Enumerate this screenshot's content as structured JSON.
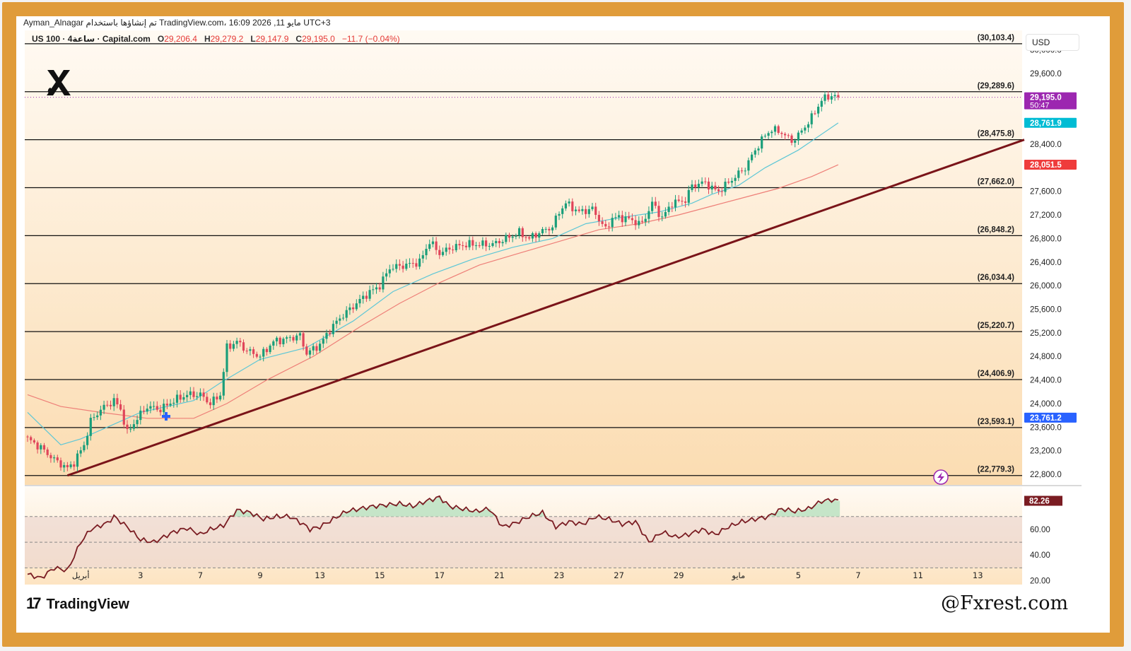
{
  "header": {
    "line1": "Ayman_Alnagar تم إنشاؤها باستخدام TradingView.com، 16:09 2026 ,11 مايو UTC+3",
    "symbol": "US 100 · 4ساعة · Capital.com",
    "o_label": "O",
    "o_value": "29,206.4",
    "h_label": "H",
    "h_value": "29,279.2",
    "l_label": "L",
    "l_value": "29,147.9",
    "c_label": "C",
    "c_value": "29,195.0",
    "change": "−11.7 (−0.04%)"
  },
  "currency": "USD",
  "branding": {
    "tv_logo": "TradingView",
    "watermark": "@Fxrest.com",
    "logo_icon": "x-brand-icon"
  },
  "colors": {
    "up": "#1a9e7a",
    "down": "#e0455a",
    "ema_fast": "#5ec7d6",
    "ema_slow": "#ee7f78",
    "trendline": "#7a1419",
    "rsi": "#7a1c22",
    "price_badge": "#9c27b0",
    "ema_fast_badge": "#00bcd4",
    "ema_slow_badge": "#ef3c3c",
    "blue_badge": "#2962ff"
  },
  "chart_data": {
    "type": "candlestick",
    "price_axis": {
      "ticks": [
        "30,000.0",
        "29,600.0",
        "28,400.0",
        "27,600.0",
        "27,200.0",
        "26,800.0",
        "26,400.0",
        "26,000.0",
        "25,600.0",
        "25,200.0",
        "24,800.0",
        "24,400.0",
        "24,000.0",
        "23,600.0",
        "23,200.0",
        "22,800.0"
      ],
      "tick_values": [
        30000,
        29600,
        28400,
        27600,
        27200,
        26800,
        26400,
        26000,
        25600,
        25200,
        24800,
        24400,
        24000,
        23600,
        23200,
        22800
      ],
      "range": [
        22620,
        30330
      ]
    },
    "time_axis": {
      "labels": [
        "أبريل",
        "3",
        "7",
        "9",
        "13",
        "15",
        "17",
        "21",
        "23",
        "27",
        "29",
        "مايو",
        "5",
        "7",
        "11",
        "13"
      ],
      "label_bar_index": [
        16,
        34,
        52,
        70,
        88,
        106,
        124,
        142,
        160,
        178,
        196,
        214,
        232,
        250,
        268,
        286
      ]
    },
    "fib_levels": [
      {
        "label": "(30,103.4)",
        "value": 30103.4
      },
      {
        "label": "(29,289.6)",
        "value": 29289.6
      },
      {
        "label": "(28,475.8)",
        "value": 28475.8
      },
      {
        "label": "(27,662.0)",
        "value": 27662.0
      },
      {
        "label": "(26,848.2)",
        "value": 26848.2
      },
      {
        "label": "(26,034.4)",
        "value": 26034.4
      },
      {
        "label": "(25,220.7)",
        "value": 25220.7
      },
      {
        "label": "(24,406.9)",
        "value": 24406.9
      },
      {
        "label": "(23,593.1)",
        "value": 23593.1
      },
      {
        "label": "(22,779.3)",
        "value": 22779.3
      }
    ],
    "price_badges": [
      {
        "line1": "29,195.0",
        "line2": "50:47",
        "value": 29195.0,
        "color": "#9c27b0"
      },
      {
        "line1": "28,761.9",
        "value": 28761.9,
        "color": "#00bcd4"
      },
      {
        "line1": "28,051.5",
        "value": 28051.5,
        "color": "#ef3c3c"
      },
      {
        "line1": "23,761.2",
        "value": 23761.2,
        "color": "#2962ff"
      }
    ],
    "trendline": {
      "from": {
        "bar": 12,
        "value": 22780
      },
      "to": {
        "bar": 300,
        "value": 28475
      }
    },
    "close_keypoints": [
      [
        0,
        23400
      ],
      [
        4,
        23250
      ],
      [
        8,
        23050
      ],
      [
        12,
        22900
      ],
      [
        14,
        23000
      ],
      [
        17,
        23300
      ],
      [
        19,
        23700
      ],
      [
        22,
        23900
      ],
      [
        26,
        24050
      ],
      [
        28,
        23900
      ],
      [
        30,
        23500
      ],
      [
        33,
        23750
      ],
      [
        36,
        23950
      ],
      [
        40,
        23900
      ],
      [
        44,
        24050
      ],
      [
        48,
        24150
      ],
      [
        52,
        24150
      ],
      [
        55,
        24000
      ],
      [
        58,
        24150
      ],
      [
        60,
        24950
      ],
      [
        63,
        25050
      ],
      [
        66,
        24900
      ],
      [
        70,
        24800
      ],
      [
        74,
        25050
      ],
      [
        78,
        25100
      ],
      [
        82,
        25150
      ],
      [
        84,
        24850
      ],
      [
        88,
        25000
      ],
      [
        91,
        25250
      ],
      [
        94,
        25450
      ],
      [
        98,
        25650
      ],
      [
        102,
        25850
      ],
      [
        106,
        26000
      ],
      [
        109,
        26300
      ],
      [
        114,
        26350
      ],
      [
        118,
        26400
      ],
      [
        121,
        26750
      ],
      [
        124,
        26550
      ],
      [
        128,
        26650
      ],
      [
        132,
        26700
      ],
      [
        136,
        26700
      ],
      [
        140,
        26700
      ],
      [
        144,
        26800
      ],
      [
        148,
        26900
      ],
      [
        151,
        26800
      ],
      [
        154,
        26900
      ],
      [
        158,
        27000
      ],
      [
        160,
        27250
      ],
      [
        162,
        27400
      ],
      [
        166,
        27250
      ],
      [
        170,
        27300
      ],
      [
        174,
        26950
      ],
      [
        176,
        27150
      ],
      [
        180,
        27150
      ],
      [
        182,
        27100
      ],
      [
        185,
        27050
      ],
      [
        188,
        27400
      ],
      [
        191,
        27150
      ],
      [
        194,
        27400
      ],
      [
        198,
        27450
      ],
      [
        200,
        27700
      ],
      [
        204,
        27750
      ],
      [
        206,
        27650
      ],
      [
        208,
        27600
      ],
      [
        212,
        27800
      ],
      [
        216,
        28000
      ],
      [
        219,
        28300
      ],
      [
        222,
        28550
      ],
      [
        224,
        28650
      ],
      [
        227,
        28600
      ],
      [
        230,
        28450
      ],
      [
        232,
        28550
      ],
      [
        236,
        28850
      ],
      [
        239,
        29150
      ],
      [
        242,
        29230
      ],
      [
        244,
        29195
      ]
    ],
    "ema_fast_keypoints": [
      [
        0,
        23850
      ],
      [
        10,
        23300
      ],
      [
        16,
        23400
      ],
      [
        24,
        23600
      ],
      [
        34,
        23850
      ],
      [
        50,
        24050
      ],
      [
        58,
        24350
      ],
      [
        70,
        24750
      ],
      [
        84,
        24950
      ],
      [
        98,
        25400
      ],
      [
        110,
        25900
      ],
      [
        122,
        26200
      ],
      [
        134,
        26450
      ],
      [
        146,
        26650
      ],
      [
        158,
        26800
      ],
      [
        168,
        27050
      ],
      [
        178,
        27150
      ],
      [
        190,
        27250
      ],
      [
        200,
        27400
      ],
      [
        206,
        27550
      ],
      [
        214,
        27700
      ],
      [
        222,
        28000
      ],
      [
        232,
        28300
      ],
      [
        244,
        28760
      ]
    ],
    "ema_slow_keypoints": [
      [
        0,
        24150
      ],
      [
        10,
        23950
      ],
      [
        22,
        23850
      ],
      [
        36,
        23750
      ],
      [
        50,
        23750
      ],
      [
        60,
        24000
      ],
      [
        72,
        24400
      ],
      [
        86,
        24800
      ],
      [
        100,
        25300
      ],
      [
        112,
        25700
      ],
      [
        124,
        26050
      ],
      [
        136,
        26350
      ],
      [
        148,
        26550
      ],
      [
        160,
        26750
      ],
      [
        172,
        26950
      ],
      [
        184,
        27050
      ],
      [
        196,
        27200
      ],
      [
        206,
        27350
      ],
      [
        216,
        27500
      ],
      [
        226,
        27650
      ],
      [
        236,
        27850
      ],
      [
        244,
        28050
      ]
    ],
    "rsi": {
      "value_label": "82.26",
      "levels": [
        70,
        50,
        30
      ],
      "axis_ticks": [
        "60.00",
        "40.00",
        "20.00"
      ],
      "axis_tick_values": [
        60,
        40,
        20
      ],
      "range": [
        17,
        93
      ],
      "keypoints": [
        [
          0,
          25
        ],
        [
          4,
          22
        ],
        [
          8,
          30
        ],
        [
          12,
          28
        ],
        [
          16,
          50
        ],
        [
          19,
          60
        ],
        [
          24,
          65
        ],
        [
          26,
          70
        ],
        [
          30,
          62
        ],
        [
          34,
          52
        ],
        [
          38,
          50
        ],
        [
          44,
          58
        ],
        [
          48,
          61
        ],
        [
          52,
          56
        ],
        [
          55,
          60
        ],
        [
          59,
          63
        ],
        [
          63,
          75
        ],
        [
          67,
          73
        ],
        [
          71,
          68
        ],
        [
          75,
          70
        ],
        [
          79,
          70
        ],
        [
          83,
          64
        ],
        [
          85,
          60
        ],
        [
          88,
          62
        ],
        [
          92,
          68
        ],
        [
          96,
          74
        ],
        [
          100,
          76
        ],
        [
          104,
          78
        ],
        [
          108,
          79
        ],
        [
          112,
          80
        ],
        [
          116,
          78
        ],
        [
          120,
          82
        ],
        [
          124,
          85
        ],
        [
          127,
          78
        ],
        [
          131,
          76
        ],
        [
          135,
          74
        ],
        [
          139,
          76
        ],
        [
          143,
          62
        ],
        [
          147,
          65
        ],
        [
          151,
          70
        ],
        [
          155,
          73
        ],
        [
          159,
          62
        ],
        [
          163,
          66
        ],
        [
          167,
          64
        ],
        [
          171,
          70
        ],
        [
          175,
          68
        ],
        [
          179,
          64
        ],
        [
          183,
          66
        ],
        [
          187,
          50
        ],
        [
          191,
          58
        ],
        [
          195,
          54
        ],
        [
          199,
          56
        ],
        [
          203,
          60
        ],
        [
          207,
          56
        ],
        [
          211,
          62
        ],
        [
          215,
          66
        ],
        [
          219,
          68
        ],
        [
          223,
          70
        ],
        [
          227,
          76
        ],
        [
          231,
          74
        ],
        [
          235,
          76
        ],
        [
          239,
          82
        ],
        [
          242,
          83
        ],
        [
          244,
          82.26
        ]
      ]
    }
  }
}
